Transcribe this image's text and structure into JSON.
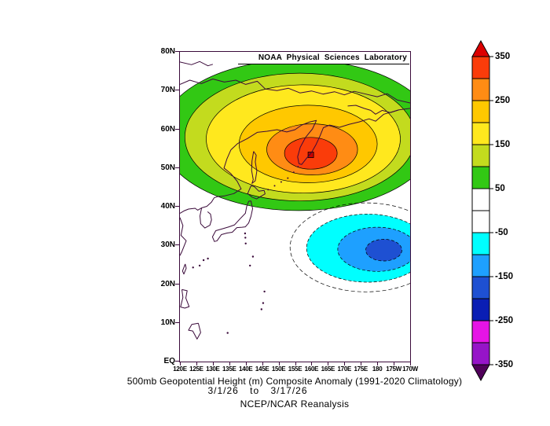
{
  "page": {
    "background": "#ffffff"
  },
  "frame": {
    "color": "#3a0a3a"
  },
  "header": {
    "title": "NOAA Physical Sciences Laboratory"
  },
  "captions": {
    "line1": "500mb Geopotential Height (m) Composite Anomaly (1991-2020 Climatology)",
    "line2": "3/1/26 to 3/17/26",
    "line3": "NCEP/NCAR Reanalysis"
  },
  "axes": {
    "lat_ticks": [
      "80N",
      "70N",
      "60N",
      "50N",
      "40N",
      "30N",
      "20N",
      "10N",
      "EQ"
    ],
    "lon_ticks": [
      "120E",
      "125E",
      "130E",
      "135E",
      "140E",
      "145E",
      "150E",
      "155E",
      "160E",
      "165E",
      "170E",
      "175E",
      "180",
      "175W",
      "170W"
    ]
  },
  "colorbar": {
    "tick_labels": [
      "350",
      "250",
      "150",
      "50",
      "-50",
      "-150",
      "-250",
      "-350"
    ],
    "arrow_top_color": "#dc0000",
    "arrow_bottom_color": "#50005a",
    "outline_color": "#000000",
    "segment_colors_top_to_bottom": [
      "#fa3c0a",
      "#ff8c14",
      "#ffc800",
      "#ffe81e",
      "#c3db1e",
      "#32c814",
      "#ffffff",
      "#ffffff",
      "#00ffff",
      "#1ea0ff",
      "#1e50d2",
      "#0a1eb4",
      "#e614e6",
      "#9614c8"
    ]
  },
  "chart_data": {
    "type": "heatmap",
    "title": "500mb Geopotential Height (m) Composite Anomaly (1991-2020 Climatology)",
    "subtitle": "3/1/26 to 3/17/26",
    "source": "NCEP/NCAR Reanalysis",
    "provider": "NOAA Physical Sciences Laboratory",
    "variable": "500mb Geopotential Height Composite Anomaly",
    "units": "m",
    "climatology": "1991-2020",
    "contour_interval": 50,
    "colorbar_range": [
      -350,
      350
    ],
    "colorbar_tick_values": [
      350,
      250,
      150,
      50,
      -50,
      -150,
      -250,
      -350
    ],
    "lon_domain_deg_east": [
      120,
      190
    ],
    "lat_domain_deg_north": [
      0,
      80
    ],
    "anomaly_centers": [
      {
        "sign": "positive",
        "approx_location": "54N 160E near Kamchatka",
        "approx_peak_m": 350
      },
      {
        "sign": "negative",
        "approx_location": "29N 180",
        "approx_peak_m": -200
      }
    ],
    "positive_rings": [
      {
        "level": 50,
        "color": "#32c814",
        "lon": 156.0,
        "lat": 58.5,
        "rx_deg": 42.0,
        "ry_deg": 19.5
      },
      {
        "level": 100,
        "color": "#c3db1e",
        "lon": 156.5,
        "lat": 58.0,
        "rx_deg": 35.0,
        "ry_deg": 16.5
      },
      {
        "level": 150,
        "color": "#ffe81e",
        "lon": 157.5,
        "lat": 57.5,
        "rx_deg": 29.5,
        "ry_deg": 14.0
      },
      {
        "level": 200,
        "color": "#ffc800",
        "lon": 159.0,
        "lat": 56.2,
        "rx_deg": 21.0,
        "ry_deg": 10.0
      },
      {
        "level": 250,
        "color": "#ff8c14",
        "lon": 160.2,
        "lat": 54.8,
        "rx_deg": 13.8,
        "ry_deg": 6.6
      },
      {
        "level": 300,
        "color": "#fa3c0a",
        "lon": 159.8,
        "lat": 53.8,
        "rx_deg": 8.0,
        "ry_deg": 4.1
      }
    ],
    "negative_rings": [
      {
        "level": -50,
        "color": "#00ffff",
        "lon": 177.0,
        "lat": 29.3,
        "rx_deg": 18.5,
        "ry_deg": 8.8
      },
      {
        "level": -100,
        "color": "#1ea0ff",
        "lon": 180.0,
        "lat": 29.0,
        "rx_deg": 12.0,
        "ry_deg": 5.7
      },
      {
        "level": -150,
        "color": "#1e50d2",
        "lon": 182.0,
        "lat": 28.8,
        "rx_deg": 5.5,
        "ry_deg": 2.8
      }
    ],
    "zero_contour": {
      "lon": 176.5,
      "lat": 29.5,
      "rx_deg": 23.0,
      "ry_deg": 11.5
    },
    "peak_marker": {
      "lon": 159.8,
      "lat": 53.4,
      "color": "#c80000"
    },
    "coastlines": [
      {
        "name": "taymyr-arctic-coast",
        "points": [
          [
            120,
            77.4
          ],
          [
            123.5,
            76.7
          ],
          [
            126,
            77.5
          ],
          [
            128.5,
            76.4
          ],
          [
            130,
            76.8
          ]
        ]
      },
      {
        "name": "siberian-arctic-coast",
        "points": [
          [
            120,
            71.6
          ],
          [
            123,
            72.7
          ],
          [
            126.5,
            71.8
          ],
          [
            130,
            73.0
          ],
          [
            133.5,
            72.2
          ],
          [
            137,
            72.7
          ],
          [
            140,
            71.6
          ],
          [
            143.5,
            72.4
          ],
          [
            146,
            70.4
          ],
          [
            149.5,
            70.0
          ],
          [
            153,
            70.6
          ],
          [
            156.5,
            69.4
          ],
          [
            160,
            69.9
          ],
          [
            163.5,
            69.1
          ],
          [
            167,
            69.7
          ],
          [
            170,
            68.9
          ],
          [
            173,
            69.8
          ],
          [
            176,
            69.2
          ],
          [
            180,
            68.4
          ],
          [
            183,
            69.2
          ],
          [
            186,
            67.6
          ],
          [
            190,
            66.8
          ]
        ]
      },
      {
        "name": "chukotka-bering-coast",
        "points": [
          [
            190,
            65.4
          ],
          [
            186.5,
            65.0
          ],
          [
            184,
            64.3
          ],
          [
            181.5,
            64.9
          ],
          [
            179.5,
            63.9
          ],
          [
            178,
            64.9
          ],
          [
            176,
            65.4
          ],
          [
            173.5,
            66.2
          ],
          [
            171,
            66.0
          ]
        ]
      },
      {
        "name": "okhotsk-kamchatka-coast",
        "points": [
          [
            135.5,
            54.7
          ],
          [
            137.5,
            56.3
          ],
          [
            140.5,
            57.6
          ],
          [
            143.5,
            59.2
          ],
          [
            146.5,
            59.5
          ],
          [
            149.5,
            59.9
          ],
          [
            152.5,
            59.3
          ],
          [
            155,
            59.9
          ],
          [
            157,
            61.1
          ],
          [
            159.5,
            61.9
          ],
          [
            161.5,
            62.3
          ],
          [
            160.3,
            60.1
          ],
          [
            158.2,
            57.9
          ],
          [
            156.6,
            55.4
          ],
          [
            155.8,
            52.9
          ],
          [
            156.2,
            51.1
          ],
          [
            157.0,
            50.9
          ],
          [
            158.4,
            52.4
          ],
          [
            160.0,
            54.0
          ],
          [
            161.4,
            56.1
          ],
          [
            162.6,
            58.3
          ],
          [
            163.6,
            60.4
          ],
          [
            165.5,
            61.1
          ],
          [
            168.5,
            60.5
          ],
          [
            171.5,
            61.3
          ],
          [
            174.5,
            61.9
          ],
          [
            177.5,
            62.7
          ],
          [
            179.5,
            62.1
          ],
          [
            182,
            63.9
          ],
          [
            184.5,
            64.5
          ],
          [
            186.5,
            65.0
          ]
        ]
      },
      {
        "name": "sakhalin-island",
        "points": [
          [
            142.4,
            54.3
          ],
          [
            141.9,
            51.8
          ],
          [
            141.8,
            49.4
          ],
          [
            142.3,
            47.0
          ],
          [
            141.9,
            46.0
          ],
          [
            142.9,
            46.7
          ],
          [
            143.4,
            49.2
          ],
          [
            142.9,
            51.6
          ],
          [
            143.2,
            53.3
          ],
          [
            142.4,
            54.3
          ]
        ]
      },
      {
        "name": "primorye-korea-coast",
        "points": [
          [
            135.5,
            54.7
          ],
          [
            134.3,
            52.4
          ],
          [
            133.4,
            50.0
          ],
          [
            135.4,
            48.6
          ],
          [
            137.4,
            46.6
          ],
          [
            138.6,
            44.6
          ],
          [
            136.4,
            43.4
          ],
          [
            133.6,
            42.8
          ],
          [
            131.4,
            42.6
          ],
          [
            130.4,
            42.3
          ],
          [
            129.6,
            41.2
          ],
          [
            128.2,
            40.1
          ],
          [
            126.6,
            39.7
          ],
          [
            125.4,
            39.1
          ],
          [
            124.6,
            39.6
          ],
          [
            122.6,
            39.4
          ],
          [
            121.2,
            38.9
          ],
          [
            120,
            38.3
          ]
        ]
      },
      {
        "name": "korea-peninsula",
        "points": [
          [
            126.6,
            39.7
          ],
          [
            126.1,
            37.6
          ],
          [
            126.3,
            35.6
          ],
          [
            127.6,
            34.5
          ],
          [
            129.1,
            35.2
          ],
          [
            129.6,
            36.6
          ],
          [
            129.3,
            38.1
          ],
          [
            128.4,
            38.7
          ]
        ]
      },
      {
        "name": "hokkaido",
        "points": [
          [
            145.6,
            44.2
          ],
          [
            144.0,
            44.0
          ],
          [
            142.6,
            45.2
          ],
          [
            141.6,
            45.4
          ],
          [
            140.6,
            43.4
          ],
          [
            141.9,
            42.5
          ],
          [
            143.3,
            42.0
          ],
          [
            145.9,
            43.3
          ],
          [
            145.6,
            44.2
          ]
        ]
      },
      {
        "name": "honshu-kyushu",
        "points": [
          [
            141.6,
            41.5
          ],
          [
            142.1,
            39.5
          ],
          [
            141.6,
            37.5
          ],
          [
            140.9,
            35.8
          ],
          [
            139.9,
            34.8
          ],
          [
            138.9,
            34.7
          ],
          [
            137.3,
            34.6
          ],
          [
            135.9,
            33.4
          ],
          [
            134.3,
            33.2
          ],
          [
            132.6,
            32.8
          ],
          [
            131.3,
            31.2
          ],
          [
            130.5,
            31.0
          ],
          [
            129.9,
            32.2
          ],
          [
            130.9,
            33.8
          ],
          [
            132.9,
            34.3
          ],
          [
            134.9,
            34.8
          ],
          [
            136.6,
            35.3
          ],
          [
            138.3,
            36.9
          ],
          [
            139.9,
            38.3
          ],
          [
            140.3,
            40.1
          ],
          [
            140.9,
            41.4
          ],
          [
            141.6,
            41.5
          ]
        ]
      },
      {
        "name": "china-coast",
        "points": [
          [
            120,
            37.2
          ],
          [
            120.9,
            35.1
          ],
          [
            120.3,
            32.6
          ],
          [
            121.9,
            31.2
          ],
          [
            120.6,
            28.4
          ],
          [
            120,
            27.4
          ]
        ]
      },
      {
        "name": "taiwan",
        "points": [
          [
            121.6,
            25.2
          ],
          [
            120.8,
            23.4
          ],
          [
            121.2,
            22.6
          ],
          [
            121.9,
            24.1
          ],
          [
            121.6,
            25.2
          ]
        ]
      },
      {
        "name": "luzon",
        "points": [
          [
            120.6,
            18.6
          ],
          [
            122.2,
            18.3
          ],
          [
            121.8,
            16.4
          ],
          [
            122.8,
            14.2
          ],
          [
            121.5,
            13.8
          ],
          [
            120.2,
            14.1
          ],
          [
            120.9,
            16.6
          ],
          [
            120.6,
            18.6
          ]
        ]
      },
      {
        "name": "mindanao",
        "points": [
          [
            125.6,
            9.9
          ],
          [
            126.3,
            7.5
          ],
          [
            125.2,
            5.8
          ],
          [
            123.9,
            7.9
          ],
          [
            122.6,
            8.1
          ],
          [
            123.6,
            9.6
          ],
          [
            125.6,
            9.9
          ]
        ]
      }
    ],
    "kuril_island_dots": [
      [
        146.8,
        44.4
      ],
      [
        148.8,
        45.4
      ],
      [
        150.8,
        46.4
      ],
      [
        152.8,
        47.4
      ],
      [
        154.6,
        48.9
      ],
      [
        155.9,
        50.3
      ]
    ],
    "island_dots": [
      [
        142.2,
        27.1
      ],
      [
        141.3,
        24.8
      ],
      [
        145.7,
        18.1
      ],
      [
        145.3,
        15.1
      ],
      [
        144.8,
        13.5
      ],
      [
        134.5,
        7.4
      ],
      [
        139.8,
        33.1
      ],
      [
        139.9,
        32.0
      ],
      [
        140.0,
        30.5
      ],
      [
        128.5,
        26.6
      ],
      [
        127.2,
        26.2
      ],
      [
        126.0,
        24.8
      ],
      [
        124.0,
        24.3
      ]
    ]
  }
}
